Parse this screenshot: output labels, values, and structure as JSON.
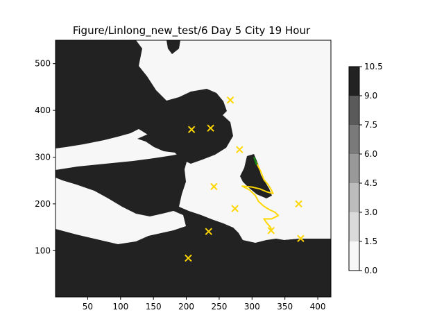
{
  "chart_data": {
    "type": "heatmap",
    "title": "Figure/Linlong_new_test/6 Day 5 City 19 Hour",
    "xlabel": "",
    "ylabel": "",
    "xlim": [
      1,
      420
    ],
    "ylim": [
      1,
      550
    ],
    "x_ticks": [
      50,
      100,
      150,
      200,
      250,
      300,
      350,
      400
    ],
    "y_ticks": [
      100,
      200,
      300,
      400,
      500
    ],
    "colorbar": {
      "levels": [
        0.0,
        1.5,
        3.0,
        4.5,
        6.0,
        7.5,
        9.0,
        10.5
      ],
      "tick_labels": [
        "0.0",
        "1.5",
        "3.0",
        "4.5",
        "6.0",
        "7.5",
        "9.0",
        "10.5"
      ],
      "colors": [
        "#f7f7f7",
        "#dadada",
        "#bcbcbc",
        "#999999",
        "#7a7a7a",
        "#5a5a5a",
        "#222222"
      ]
    },
    "field": {
      "description_levels": {
        "land": 10.5,
        "water": 0.0
      },
      "land_color": "#222222",
      "water_color": "#f7f7f7"
    },
    "cities": {
      "marker": "x",
      "color": "#ffd700",
      "points": [
        {
          "x": 267,
          "y": 422
        },
        {
          "x": 208,
          "y": 359
        },
        {
          "x": 237,
          "y": 362
        },
        {
          "x": 281,
          "y": 316
        },
        {
          "x": 242,
          "y": 237
        },
        {
          "x": 274,
          "y": 190
        },
        {
          "x": 371,
          "y": 200
        },
        {
          "x": 234,
          "y": 141
        },
        {
          "x": 329,
          "y": 143
        },
        {
          "x": 374,
          "y": 126
        },
        {
          "x": 203,
          "y": 84
        }
      ]
    },
    "route": {
      "color": "#ffd700",
      "points": [
        [
          306,
          290
        ],
        [
          313,
          270
        ],
        [
          318,
          252
        ],
        [
          325,
          240
        ],
        [
          330,
          228
        ],
        [
          332,
          222
        ],
        [
          322,
          226
        ],
        [
          312,
          232
        ],
        [
          300,
          236
        ],
        [
          285,
          238
        ],
        [
          296,
          230
        ],
        [
          305,
          218
        ],
        [
          310,
          205
        ],
        [
          318,
          195
        ],
        [
          326,
          188
        ],
        [
          335,
          182
        ],
        [
          340,
          175
        ],
        [
          330,
          168
        ],
        [
          318,
          168
        ],
        [
          322,
          160
        ],
        [
          328,
          150
        ],
        [
          330,
          143
        ]
      ]
    },
    "start_segment": {
      "color": "#138a13",
      "points": [
        [
          303,
          300
        ],
        [
          305,
          292
        ],
        [
          307,
          284
        ]
      ]
    }
  }
}
